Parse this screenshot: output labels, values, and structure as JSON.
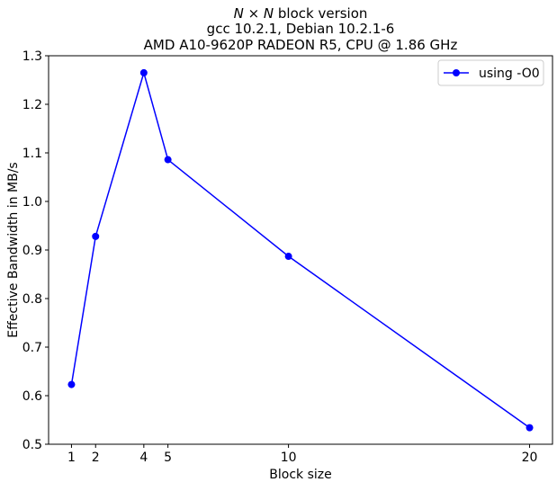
{
  "chart_data": {
    "type": "line",
    "title_lines": [
      {
        "prefix": "",
        "math": "N × N",
        "suffix": " block version"
      },
      {
        "prefix": "gcc 10.2.1, Debian 10.2.1-6",
        "math": "",
        "suffix": ""
      },
      {
        "prefix": "AMD A10-9620P RADEON R5, CPU @ 1.86 GHz",
        "math": "",
        "suffix": ""
      }
    ],
    "xlabel": "Block size",
    "ylabel": "Effective Bandwidth in MB/s",
    "xlim": [
      0.05,
      20.95
    ],
    "ylim": [
      0.5,
      1.3
    ],
    "xticks": [
      1,
      2,
      4,
      5,
      10,
      20
    ],
    "yticks": [
      0.5,
      0.6,
      0.7,
      0.8,
      0.9,
      1.0,
      1.1,
      1.2,
      1.3
    ],
    "ytick_labels": [
      "0.5",
      "0.6",
      "0.7",
      "0.8",
      "0.9",
      "1.0",
      "1.1",
      "1.2",
      "1.3"
    ],
    "grid": false,
    "legend_position": "upper right",
    "series": [
      {
        "name": "using -O0",
        "color": "#0000ff",
        "marker": "circle",
        "x": [
          1,
          2,
          4,
          5,
          10,
          20
        ],
        "y": [
          0.623,
          0.928,
          1.265,
          1.086,
          0.887,
          0.534
        ]
      }
    ]
  }
}
